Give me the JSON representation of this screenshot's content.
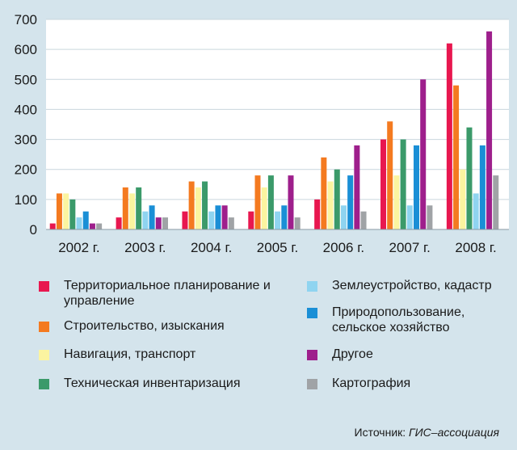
{
  "chart_data": {
    "type": "bar",
    "categories": [
      "2002 г.",
      "2003 г.",
      "2004 г.",
      "2005 г.",
      "2006 г.",
      "2007 г.",
      "2008 г."
    ],
    "ylim": [
      0,
      700
    ],
    "yticks": [
      0,
      100,
      200,
      300,
      400,
      500,
      600,
      700
    ],
    "grid": "horizontal",
    "legend_position": "bottom",
    "series": [
      {
        "name": "Территориальное планирование и управление",
        "color": "#e8174f",
        "values": [
          20,
          40,
          60,
          60,
          100,
          300,
          620
        ]
      },
      {
        "name": "Строительство, изыскания",
        "color": "#f47a20",
        "values": [
          120,
          140,
          160,
          180,
          240,
          360,
          480
        ]
      },
      {
        "name": "Навигация, транспорт",
        "color": "#fbf4a0",
        "values": [
          120,
          120,
          140,
          140,
          160,
          180,
          200
        ]
      },
      {
        "name": "Техническая инвентаризация",
        "color": "#3b9a6a",
        "values": [
          100,
          140,
          160,
          180,
          200,
          300,
          340
        ]
      },
      {
        "name": "Землеустройство, кадастр",
        "color": "#8fd4f0",
        "values": [
          40,
          60,
          60,
          60,
          80,
          80,
          120
        ]
      },
      {
        "name": "Природопользование, сельское хозяйство",
        "color": "#1a8fd6",
        "values": [
          60,
          80,
          80,
          80,
          180,
          280,
          280
        ]
      },
      {
        "name": "Другое",
        "color": "#9e1f8c",
        "values": [
          20,
          40,
          80,
          180,
          280,
          500,
          660
        ]
      },
      {
        "name": "Картография",
        "color": "#a0a3a6",
        "values": [
          20,
          40,
          40,
          40,
          60,
          80,
          180
        ]
      }
    ]
  },
  "legend": {
    "items": [
      {
        "label": "Территориальное планирование и управление",
        "color": "#e8174f"
      },
      {
        "label": "Строительство, изыскания",
        "color": "#f47a20"
      },
      {
        "label": "Навигация, транспорт",
        "color": "#fbf4a0"
      },
      {
        "label": "Техническая инвентаризация",
        "color": "#3b9a6a"
      },
      {
        "label": "Землеустройство, кадастр",
        "color": "#8fd4f0"
      },
      {
        "label": "Природопользование, сельское хозяйство",
        "color": "#1a8fd6"
      },
      {
        "label": "Другое",
        "color": "#9e1f8c"
      },
      {
        "label": "Картография",
        "color": "#a0a3a6"
      }
    ]
  },
  "source": {
    "prefix": "Источник:",
    "name": "ГИС–ассоциация"
  },
  "colors": {
    "background": "#d4e4ec",
    "plot_background": "#ffffff",
    "gridline": "#c9d6dd"
  }
}
